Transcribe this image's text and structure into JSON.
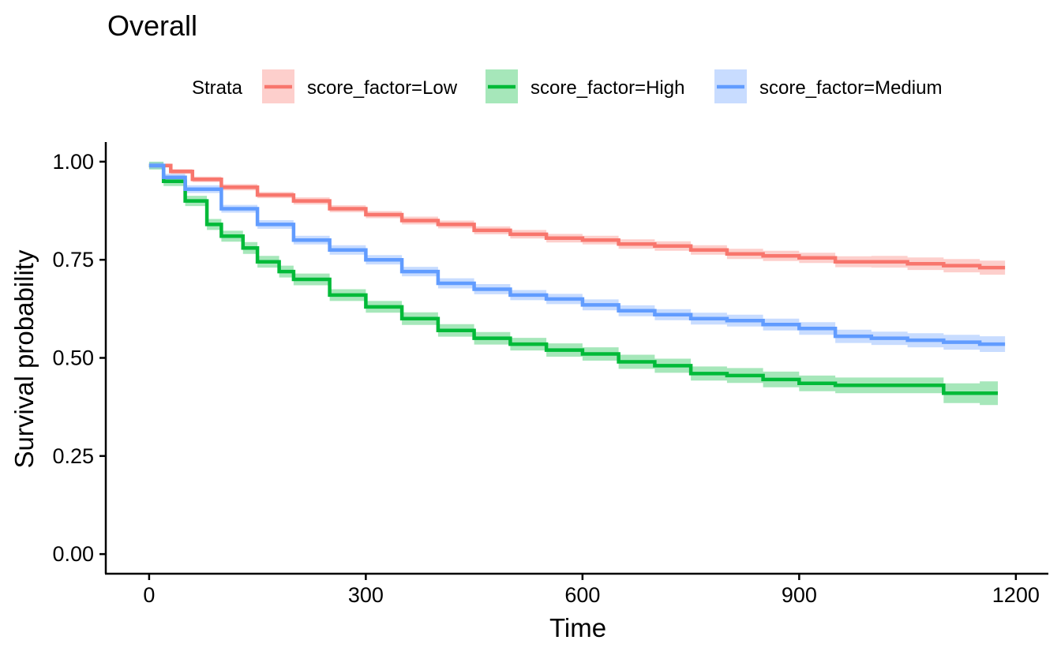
{
  "chart_data": {
    "type": "line",
    "title": "Overall",
    "xlabel": "Time",
    "ylabel": "Survival probability",
    "xlim": [
      -60,
      1245
    ],
    "ylim": [
      -0.05,
      1.05
    ],
    "x_ticks": [
      0,
      300,
      600,
      900,
      1200
    ],
    "x_tick_labels": [
      "0",
      "300",
      "600",
      "900",
      "1200"
    ],
    "y_ticks": [
      0,
      0.25,
      0.5,
      0.75,
      1.0
    ],
    "y_tick_labels": [
      "0.00",
      "0.25",
      "0.50",
      "0.75",
      "1.00"
    ],
    "legend": {
      "title": "Strata",
      "position": "top"
    },
    "grid": false,
    "series": [
      {
        "name": "score_factor=Low",
        "color": "#F8766D",
        "x": [
          0,
          30,
          60,
          100,
          150,
          200,
          250,
          300,
          350,
          400,
          450,
          500,
          550,
          600,
          650,
          700,
          750,
          800,
          850,
          900,
          950,
          1000,
          1050,
          1100,
          1150,
          1185
        ],
        "y": [
          0.99,
          0.975,
          0.955,
          0.935,
          0.915,
          0.9,
          0.88,
          0.865,
          0.85,
          0.84,
          0.825,
          0.815,
          0.805,
          0.8,
          0.79,
          0.785,
          0.775,
          0.765,
          0.76,
          0.755,
          0.745,
          0.745,
          0.74,
          0.735,
          0.73,
          0.73
        ],
        "ci_width": [
          0.005,
          0.006,
          0.007,
          0.008,
          0.008,
          0.009,
          0.009,
          0.009,
          0.01,
          0.01,
          0.01,
          0.011,
          0.011,
          0.011,
          0.012,
          0.012,
          0.012,
          0.013,
          0.013,
          0.013,
          0.014,
          0.015,
          0.016,
          0.017,
          0.018,
          0.018
        ]
      },
      {
        "name": "score_factor=High",
        "color": "#00BA38",
        "x": [
          0,
          20,
          50,
          80,
          100,
          130,
          150,
          180,
          200,
          250,
          300,
          350,
          400,
          450,
          500,
          550,
          600,
          650,
          700,
          750,
          800,
          850,
          900,
          950,
          1000,
          1050,
          1100,
          1150,
          1175
        ],
        "y": [
          0.99,
          0.95,
          0.9,
          0.84,
          0.81,
          0.78,
          0.745,
          0.72,
          0.7,
          0.66,
          0.63,
          0.6,
          0.57,
          0.55,
          0.535,
          0.52,
          0.51,
          0.49,
          0.48,
          0.46,
          0.455,
          0.445,
          0.435,
          0.43,
          0.43,
          0.43,
          0.41,
          0.41,
          0.41
        ],
        "ci_width": [
          0.01,
          0.012,
          0.013,
          0.014,
          0.014,
          0.015,
          0.015,
          0.015,
          0.015,
          0.015,
          0.015,
          0.016,
          0.016,
          0.016,
          0.016,
          0.017,
          0.017,
          0.018,
          0.018,
          0.018,
          0.019,
          0.02,
          0.02,
          0.02,
          0.02,
          0.02,
          0.025,
          0.03,
          0.03
        ]
      },
      {
        "name": "score_factor=Medium",
        "color": "#619CFF",
        "x": [
          0,
          20,
          50,
          100,
          150,
          200,
          250,
          300,
          350,
          400,
          450,
          500,
          550,
          600,
          650,
          700,
          750,
          800,
          850,
          900,
          950,
          1000,
          1050,
          1100,
          1150,
          1185
        ],
        "y": [
          0.99,
          0.96,
          0.93,
          0.88,
          0.84,
          0.8,
          0.775,
          0.75,
          0.72,
          0.69,
          0.675,
          0.66,
          0.65,
          0.635,
          0.62,
          0.61,
          0.6,
          0.595,
          0.585,
          0.575,
          0.555,
          0.55,
          0.545,
          0.54,
          0.535,
          0.535
        ],
        "ci_width": [
          0.008,
          0.009,
          0.01,
          0.01,
          0.011,
          0.011,
          0.012,
          0.012,
          0.012,
          0.013,
          0.013,
          0.013,
          0.013,
          0.014,
          0.014,
          0.014,
          0.015,
          0.015,
          0.015,
          0.016,
          0.017,
          0.017,
          0.018,
          0.019,
          0.02,
          0.02
        ]
      }
    ]
  }
}
